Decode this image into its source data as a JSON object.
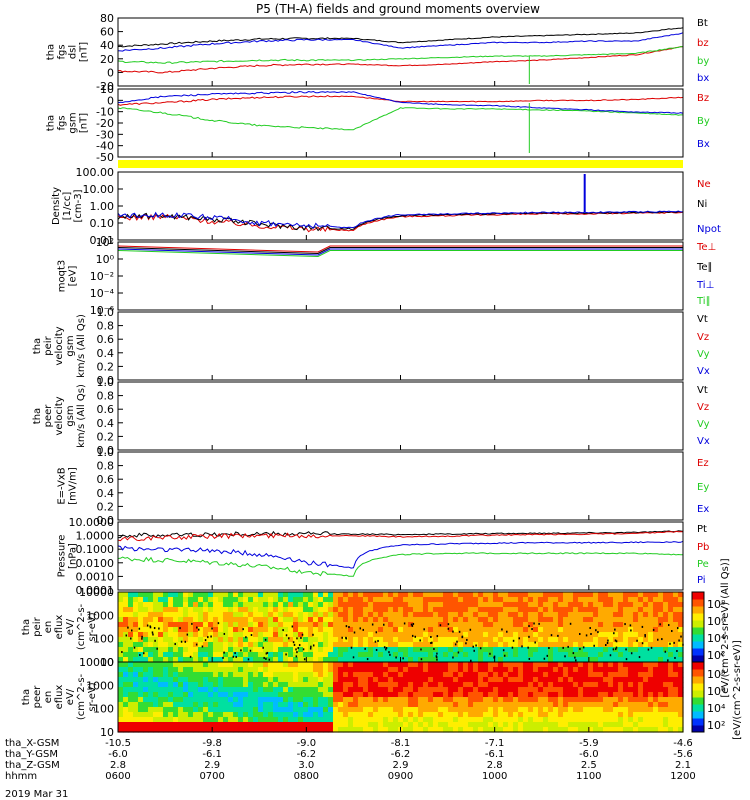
{
  "title": "P5 (TH-A) fields and ground moments overview",
  "date_label": "2019 Mar 31",
  "colors": {
    "black": "#000000",
    "red": "#dd0000",
    "green": "#22cc22",
    "blue": "#0000dd",
    "yellow": "#ffff00"
  },
  "chart_data": [
    {
      "id": "fgs-dsl",
      "type": "line",
      "ylabel": [
        "tha",
        "fgs",
        "dsl",
        "[nT]"
      ],
      "ylim": [
        -20,
        80
      ],
      "yticks": [
        "80",
        "60",
        "40",
        "20",
        "0",
        "-20"
      ],
      "series": [
        {
          "name": "Bt",
          "color": "black",
          "values": [
            38,
            42,
            46,
            49,
            50,
            50,
            44,
            48,
            52,
            54,
            56,
            58,
            66
          ]
        },
        {
          "name": "bz",
          "color": "red",
          "values": [
            2,
            0,
            6,
            10,
            12,
            12,
            10,
            12,
            16,
            18,
            22,
            26,
            38
          ]
        },
        {
          "name": "by",
          "color": "green",
          "values": [
            16,
            14,
            16,
            18,
            18,
            18,
            20,
            22,
            24,
            24,
            26,
            28,
            38
          ]
        },
        {
          "name": "bx",
          "color": "blue",
          "values": [
            32,
            36,
            42,
            46,
            48,
            48,
            36,
            40,
            44,
            44,
            46,
            46,
            58
          ]
        }
      ]
    },
    {
      "id": "fgs-gsm",
      "type": "line",
      "ylabel": [
        "tha",
        "fgs",
        "gsm",
        "[nT]"
      ],
      "ylim": [
        -50,
        15
      ],
      "yticks": [
        "10",
        "0",
        "-10",
        "-20",
        "-30",
        "-40",
        "-50"
      ],
      "series": [
        {
          "name": "Bz",
          "color": "red",
          "values": [
            0,
            2,
            5,
            7,
            8,
            8,
            3,
            3,
            3,
            4,
            4,
            5,
            7
          ]
        },
        {
          "name": "By",
          "color": "green",
          "values": [
            -3,
            -8,
            -15,
            -20,
            -22,
            -24,
            -3,
            -4,
            -4,
            -5,
            -6,
            -8,
            -10
          ]
        },
        {
          "name": "Bx",
          "color": "blue",
          "values": [
            2,
            8,
            10,
            11,
            12,
            12,
            2,
            0,
            -1,
            -3,
            -5,
            -7,
            -8
          ]
        }
      ]
    },
    {
      "id": "density",
      "type": "line",
      "log": true,
      "ylabel": [
        "Density",
        "[1/cc]",
        "[cm-3]"
      ],
      "ylim": [
        0.01,
        200
      ],
      "yticks": [
        "100.00",
        "10.00",
        "1.00",
        "0.10",
        "0.01"
      ],
      "series": [
        {
          "name": "Ne",
          "color": "red",
          "values": [
            0.25,
            0.3,
            0.15,
            0.08,
            0.05,
            0.04,
            0.3,
            0.35,
            0.4,
            0.45,
            0.45,
            0.5,
            0.55
          ]
        },
        {
          "name": "Ni",
          "color": "black",
          "values": [
            0.3,
            0.35,
            0.2,
            0.1,
            0.06,
            0.05,
            0.35,
            0.4,
            0.45,
            0.5,
            0.5,
            0.55,
            0.6
          ]
        },
        {
          "name": "Npot",
          "color": "blue",
          "values": [
            0.35,
            0.4,
            0.25,
            0.12,
            0.08,
            0.06,
            0.4,
            0.45,
            0.5,
            0.55,
            0.55,
            0.6,
            0.65
          ]
        }
      ]
    },
    {
      "id": "temperature",
      "type": "line",
      "log": true,
      "ylabel": [
        "moqt3",
        "[eV]"
      ],
      "ylim": [
        1e-06,
        1000
      ],
      "yticks": [
        "10²",
        "10⁰",
        "10⁻²",
        "10⁻⁴",
        "10⁻⁶"
      ],
      "series": [
        {
          "name": "Te⊥",
          "color": "red"
        },
        {
          "name": "Te∥",
          "color": "black"
        },
        {
          "name": "Ti⊥",
          "color": "blue"
        },
        {
          "name": "Ti∥",
          "color": "green"
        }
      ]
    },
    {
      "id": "peir-velocity",
      "type": "line",
      "ylabel": [
        "tha",
        "peir",
        "velocity",
        "gsm",
        "km/s (All Qs)"
      ],
      "ylim": [
        0,
        1
      ],
      "yticks": [
        "1.0",
        "0.8",
        "0.6",
        "0.4",
        "0.2",
        "0.0"
      ],
      "series": [
        {
          "name": "Vt",
          "color": "black"
        },
        {
          "name": "Vz",
          "color": "red"
        },
        {
          "name": "Vy",
          "color": "green"
        },
        {
          "name": "Vx",
          "color": "blue"
        }
      ]
    },
    {
      "id": "peer-velocity",
      "type": "line",
      "ylabel": [
        "tha",
        "peer",
        "velocity",
        "gsm",
        "km/s (All Qs)"
      ],
      "ylim": [
        0,
        1
      ],
      "yticks": [
        "1.0",
        "0.8",
        "0.6",
        "0.4",
        "0.2",
        "0.0"
      ],
      "series": [
        {
          "name": "Vt",
          "color": "black"
        },
        {
          "name": "Vz",
          "color": "red"
        },
        {
          "name": "Vy",
          "color": "green"
        },
        {
          "name": "Vx",
          "color": "blue"
        }
      ]
    },
    {
      "id": "efield",
      "type": "line",
      "ylabel": [
        "E=-VxB",
        "[mV/m]"
      ],
      "ylim": [
        0,
        1
      ],
      "yticks": [
        "1.0",
        "0.8",
        "0.6",
        "0.4",
        "0.2",
        "0.0"
      ],
      "series": [
        {
          "name": "Ez",
          "color": "red"
        },
        {
          "name": "Ey",
          "color": "green"
        },
        {
          "name": "Ex",
          "color": "blue"
        }
      ]
    },
    {
      "id": "pressure",
      "type": "line",
      "log": true,
      "ylabel": [
        "Pressure",
        "[nPa]"
      ],
      "ylim": [
        0.0001,
        10
      ],
      "yticks": [
        "10.0000",
        "1.0000",
        "0.1000",
        "0.0100",
        "0.0010",
        "0.0001"
      ],
      "series": [
        {
          "name": "Pt",
          "color": "black",
          "values": [
            1.0,
            1.1,
            1.2,
            1.3,
            1.3,
            1.3,
            1.2,
            1.3,
            1.4,
            1.5,
            1.6,
            1.7,
            2.2
          ]
        },
        {
          "name": "Pb",
          "color": "red",
          "values": [
            0.6,
            0.7,
            0.9,
            1.0,
            1.0,
            1.0,
            0.8,
            0.9,
            1.1,
            1.2,
            1.3,
            1.4,
            2.0
          ]
        },
        {
          "name": "Pe",
          "color": "green",
          "values": [
            0.02,
            0.015,
            0.01,
            0.005,
            0.002,
            0.001,
            0.04,
            0.05,
            0.05,
            0.05,
            0.05,
            0.05,
            0.04
          ]
        },
        {
          "name": "Pi",
          "color": "blue",
          "values": [
            0.12,
            0.1,
            0.08,
            0.04,
            0.01,
            0.004,
            0.2,
            0.25,
            0.28,
            0.3,
            0.3,
            0.32,
            0.35
          ]
        }
      ]
    },
    {
      "id": "peir-eflux",
      "type": "heatmap",
      "ylabel": [
        "tha",
        "peir",
        "en",
        "eflux",
        "eV/",
        "(cm^2-s-",
        "sr-eV)"
      ],
      "yticks": [
        "10000",
        "1000",
        "100",
        "10"
      ]
    },
    {
      "id": "peer-eflux",
      "type": "heatmap",
      "ylabel": [
        "tha",
        "peer",
        "en",
        "eflux",
        "eV/",
        "(cm^2-s-",
        "sr-eV)"
      ],
      "yticks": [
        "10000",
        "1000",
        "100",
        "10"
      ]
    }
  ],
  "colorbar": {
    "ticks": [
      "10⁸",
      "10⁶",
      "10⁴",
      "10²"
    ],
    "label": "[eV/(cm^2-s-sr-eV)]",
    "label2": "[eV/(cm^2-s-sr-eV) (All Qs)]"
  },
  "ephemeris": {
    "rows": [
      {
        "label": "tha_X-GSM",
        "values": [
          "-10.5",
          "-9.8",
          "-9.0",
          "-8.1",
          "-7.1",
          "-5.9",
          "-4.6"
        ]
      },
      {
        "label": "tha_Y-GSM",
        "values": [
          "-6.0",
          "-6.1",
          "-6.2",
          "-6.2",
          "-6.1",
          "-6.0",
          "-5.6"
        ]
      },
      {
        "label": "tha_Z-GSM",
        "values": [
          "2.8",
          "2.9",
          "3.0",
          "2.9",
          "2.8",
          "2.5",
          "2.1"
        ]
      },
      {
        "label": "hhmm",
        "values": [
          "0600",
          "0700",
          "0800",
          "0900",
          "1000",
          "1100",
          "1200"
        ]
      }
    ]
  }
}
